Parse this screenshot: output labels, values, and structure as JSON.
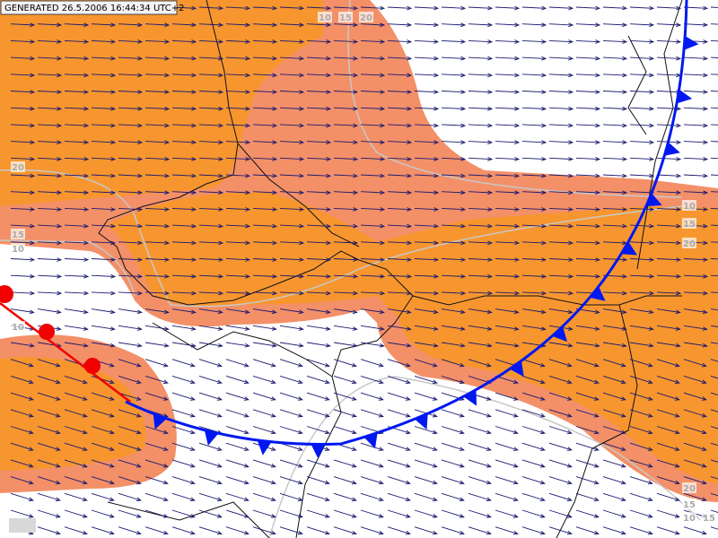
{
  "header": {
    "generated": "GENERATED 26.5.2006 16:44:34 UTC+2"
  },
  "contour_labels": [
    "10",
    "15",
    "20",
    "20",
    "15",
    "10",
    "10",
    "10",
    "15",
    "20",
    "20",
    "15",
    "10",
    "15"
  ]
}
